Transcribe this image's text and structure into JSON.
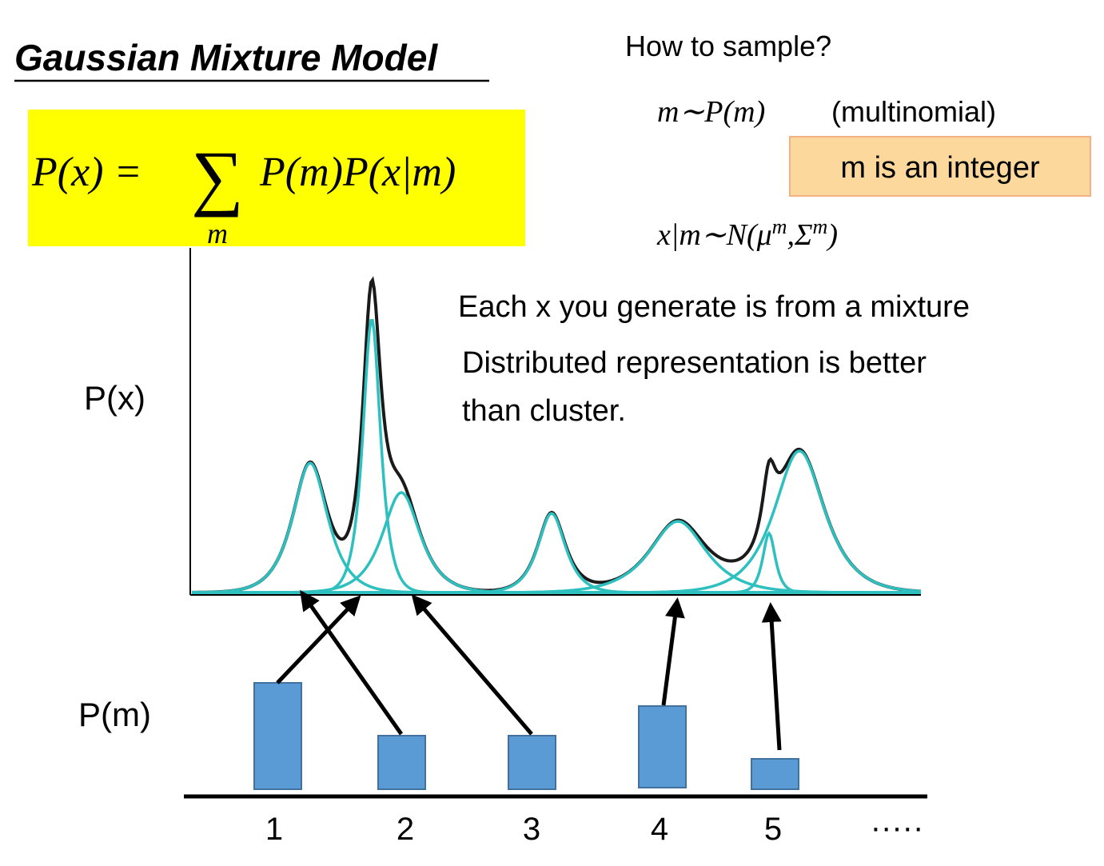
{
  "title": "Gaussian Mixture Model",
  "formula": {
    "lhs": "P(x) =",
    "sum": "∑",
    "sum_index": "m",
    "rhs": "P(m)P(x|m)"
  },
  "sampling": {
    "heading": "How to sample?",
    "step1": {
      "expr": "m∼P(m)",
      "note": "(multinomial)"
    },
    "callout": "m is an integer",
    "step2": {
      "base": "x|m∼N(μ",
      "sup1": "m",
      "mid": ",Σ",
      "sup2": "m",
      "end": ")"
    }
  },
  "notes": [
    "Each x you generate is from a mixture",
    "Distributed representation is better",
    "than cluster."
  ],
  "axis_labels": {
    "px": "P(x)",
    "pm": "P(m)"
  },
  "components": [
    "1",
    "2",
    "3",
    "4",
    "5",
    "·····"
  ]
}
